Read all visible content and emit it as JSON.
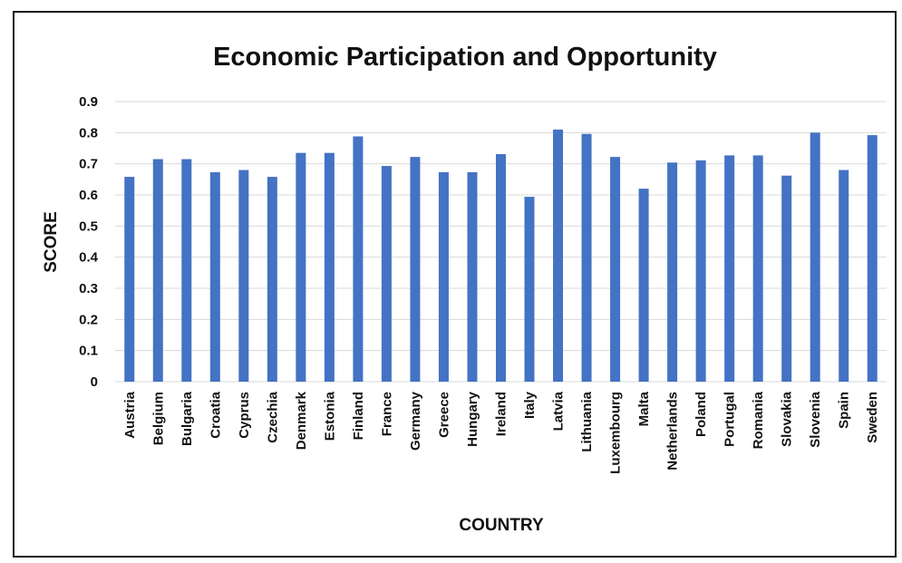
{
  "chart_data": {
    "type": "bar",
    "title": "Economic Participation and Opportunity",
    "xlabel": "COUNTRY",
    "ylabel": "SCORE",
    "ylim": [
      0,
      0.9
    ],
    "yticks": [
      "0",
      "0.1",
      "0.2",
      "0.3",
      "0.4",
      "0.5",
      "0.6",
      "0.7",
      "0.8",
      "0.9"
    ],
    "grid": true,
    "color": "#4472c4",
    "categories": [
      "Austria",
      "Belgium",
      "Bulgaria",
      "Croatia",
      "Cyprus",
      "Czechia",
      "Denmark",
      "Estonia",
      "Finland",
      "France",
      "Germany",
      "Greece",
      "Hungary",
      "Ireland",
      "Italy",
      "Latvia",
      "Lithuania",
      "Luxembourg",
      "Malta",
      "Netherlands",
      "Poland",
      "Portugal",
      "Romania",
      "Slovakia",
      "Slovenia",
      "Spain",
      "Sweden"
    ],
    "values": [
      0.658,
      0.715,
      0.715,
      0.673,
      0.68,
      0.658,
      0.735,
      0.735,
      0.788,
      0.693,
      0.722,
      0.673,
      0.673,
      0.731,
      0.594,
      0.81,
      0.796,
      0.722,
      0.62,
      0.704,
      0.711,
      0.727,
      0.727,
      0.662,
      0.8,
      0.68,
      0.792
    ]
  }
}
